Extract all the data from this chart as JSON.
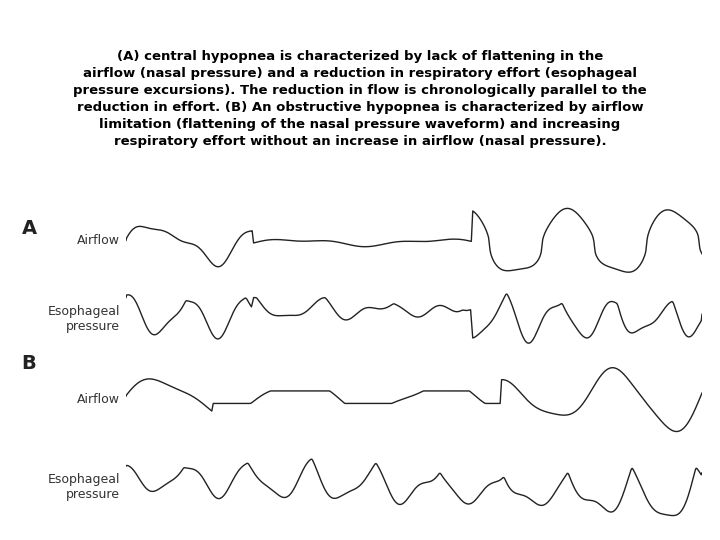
{
  "bg_top_color": "#ccd5e8",
  "bg_bottom_color": "#ffffff",
  "title_text": "(A) central hypopnea is characterized by lack of flattening in the\nairflow (nasal pressure) and a reduction in respiratory effort (esophageal\npressure excursions). The reduction in flow is chronologically parallel to the\nreduction in effort. (B) An obstructive hypopnea is characterized by airflow\nlimitation (flattening of the nasal pressure waveform) and increasing\nrespiratory effort without an increase in airflow (nasal pressure).",
  "label_A": "A",
  "label_B": "B",
  "label_airflow": "Airflow",
  "label_esoph": "Esophageal\npressure",
  "line_color": "#222222",
  "line_width": 1.0,
  "font_size_label": 9,
  "font_size_AB": 14,
  "text_fontsize": 9.5
}
